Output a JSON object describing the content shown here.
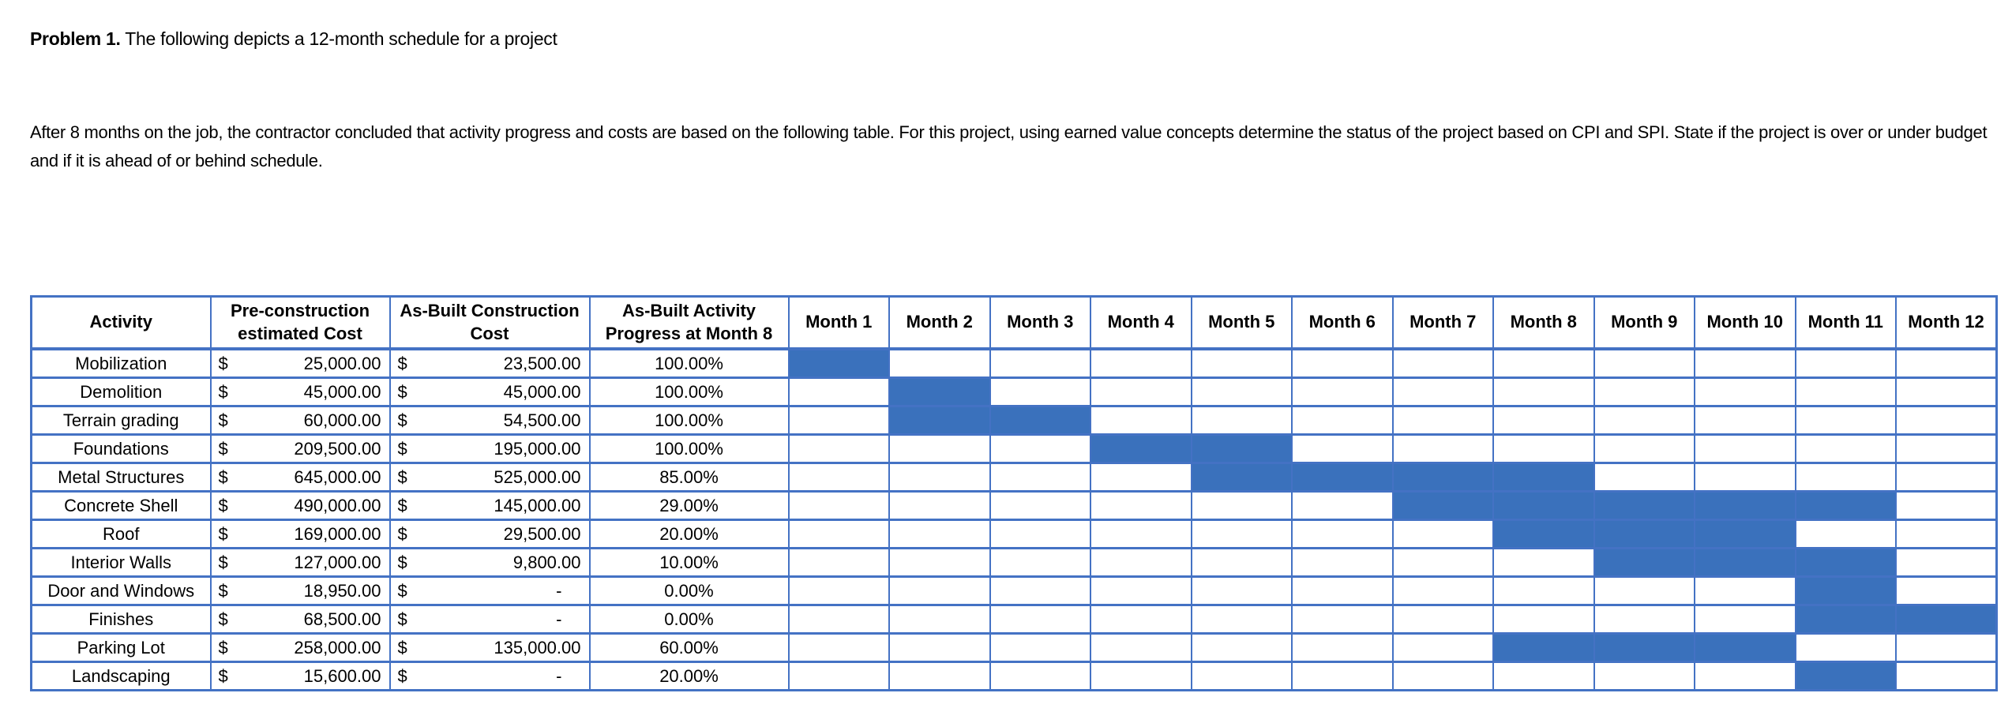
{
  "title": {
    "bold": "Problem 1.",
    "rest": " The following depicts a 12-month schedule for a project"
  },
  "description": "After 8 months on the job, the contractor concluded that activity progress and costs are based on the following table. For this project, using earned value concepts determine the status of the project based on CPI and SPI. State if the project is over or under budget and if it is ahead of or behind schedule.",
  "table": {
    "column_headers": {
      "activity": "Activity",
      "pre_cost": "Pre-construction estimated Cost",
      "as_built_cost": "As-Built Construction Cost",
      "progress": "As-Built Activity Progress at Month 8"
    },
    "month_headers": [
      "Month 1",
      "Month 2",
      "Month 3",
      "Month 4",
      "Month 5",
      "Month 6",
      "Month 7",
      "Month 8",
      "Month 9",
      "Month 10",
      "Month 11",
      "Month 12"
    ],
    "currency_symbol": "$",
    "empty_value": "-",
    "rows": [
      {
        "activity": "Mobilization",
        "pre_cost": "25,000.00",
        "as_built_cost": "23,500.00",
        "progress": "100.00%",
        "gantt_months": [
          1
        ]
      },
      {
        "activity": "Demolition",
        "pre_cost": "45,000.00",
        "as_built_cost": "45,000.00",
        "progress": "100.00%",
        "gantt_months": [
          2
        ]
      },
      {
        "activity": "Terrain grading",
        "pre_cost": "60,000.00",
        "as_built_cost": "54,500.00",
        "progress": "100.00%",
        "gantt_months": [
          2,
          3
        ]
      },
      {
        "activity": "Foundations",
        "pre_cost": "209,500.00",
        "as_built_cost": "195,000.00",
        "progress": "100.00%",
        "gantt_months": [
          4,
          5
        ]
      },
      {
        "activity": "Metal Structures",
        "pre_cost": "645,000.00",
        "as_built_cost": "525,000.00",
        "progress": "85.00%",
        "gantt_months": [
          5,
          6,
          7,
          8
        ]
      },
      {
        "activity": "Concrete Shell",
        "pre_cost": "490,000.00",
        "as_built_cost": "145,000.00",
        "progress": "29.00%",
        "gantt_months": [
          7,
          8,
          9,
          10,
          11
        ]
      },
      {
        "activity": "Roof",
        "pre_cost": "169,000.00",
        "as_built_cost": "29,500.00",
        "progress": "20.00%",
        "gantt_months": [
          8,
          9,
          10
        ]
      },
      {
        "activity": "Interior Walls",
        "pre_cost": "127,000.00",
        "as_built_cost": "9,800.00",
        "progress": "10.00%",
        "gantt_months": [
          9,
          10,
          11
        ]
      },
      {
        "activity": "Door and Windows",
        "pre_cost": "18,950.00",
        "as_built_cost": "-",
        "progress": "0.00%",
        "gantt_months": [
          11
        ]
      },
      {
        "activity": "Finishes",
        "pre_cost": "68,500.00",
        "as_built_cost": "-",
        "progress": "0.00%",
        "gantt_months": [
          11,
          12
        ]
      },
      {
        "activity": "Parking Lot",
        "pre_cost": "258,000.00",
        "as_built_cost": "135,000.00",
        "progress": "60.00%",
        "gantt_months": [
          8,
          9,
          10
        ]
      },
      {
        "activity": "Landscaping",
        "pre_cost": "15,600.00",
        "as_built_cost": "-",
        "progress": "20.00%",
        "gantt_months": [
          11
        ]
      }
    ]
  },
  "colors": {
    "bar_fill": "#3A71BC",
    "table_border": "#4472C4",
    "text": "#000000",
    "background": "#FFFFFF"
  }
}
